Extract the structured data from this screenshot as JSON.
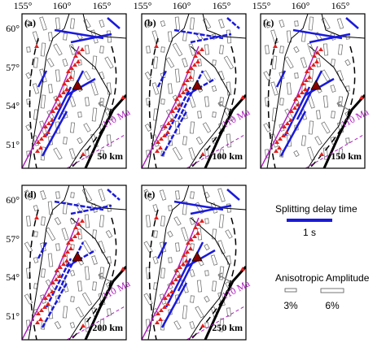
{
  "panels": [
    {
      "label": "(a)",
      "depth": "50 km",
      "annotation": "110 Ma"
    },
    {
      "label": "(b)",
      "depth": "100 km",
      "annotation": "110 Ma"
    },
    {
      "label": "(c)",
      "depth": "150 km",
      "annotation": "110 Ma"
    },
    {
      "label": "(d)",
      "depth": "200 km",
      "annotation": "110 Ma"
    },
    {
      "label": "(e)",
      "depth": "250 km",
      "annotation": "110 Ma"
    }
  ],
  "lon_labels": [
    "155°",
    "160°",
    "165°"
  ],
  "lat_labels": [
    "60°",
    "57°",
    "54°",
    "51°"
  ],
  "legend": {
    "splitting_title": "Splitting delay time",
    "splitting_scale": "1 s",
    "amplitude_title": "Anisotropic Amplitude",
    "amplitude_small": "3%",
    "amplitude_large": "6%"
  }
}
